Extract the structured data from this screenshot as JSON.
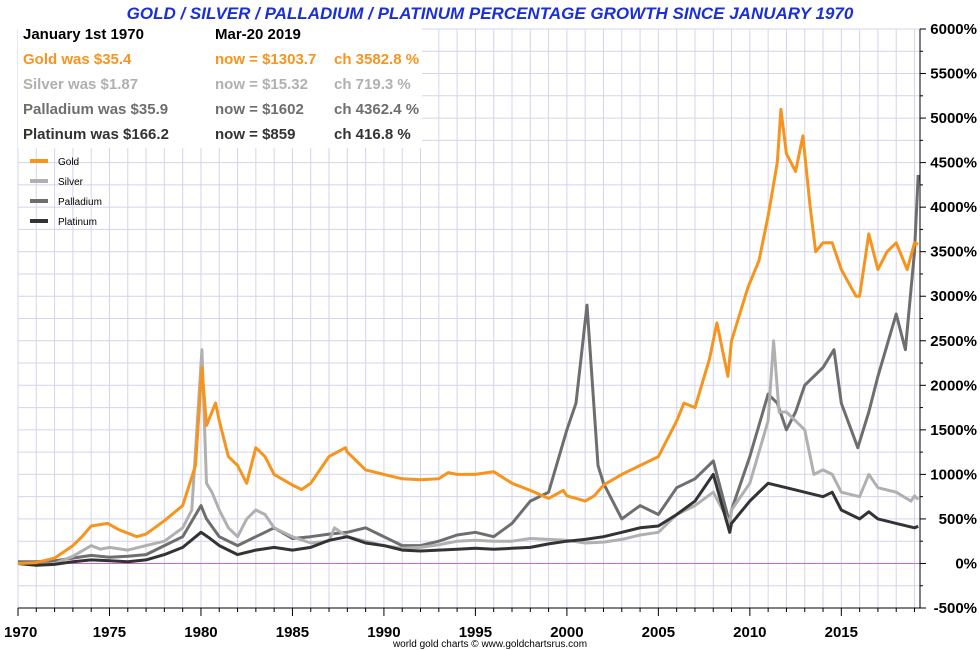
{
  "chart_data": {
    "type": "line",
    "title": "GOLD / SILVER / PALLADIUM / PLATINUM PERCENTAGE GROWTH SINCE JANUARY 1970",
    "xlabel": "",
    "ylabel": "",
    "xlim": [
      1970,
      2019.3
    ],
    "ylim": [
      -500,
      6000
    ],
    "x_ticks": [
      "1970",
      "1975",
      "1980",
      "1985",
      "1990",
      "1995",
      "2000",
      "2005",
      "2010",
      "2015"
    ],
    "y_ticks": [
      "6000%",
      "5500%",
      "5000%",
      "4500%",
      "4000%",
      "3500%",
      "3000%",
      "2500%",
      "2000%",
      "1500%",
      "1000%",
      "500%",
      "0%",
      "-500%"
    ],
    "grid": true,
    "legend_position": "top-left",
    "zero_line_color": "#cc66cc",
    "credit": "world gold charts © www.goldchartsrus.com",
    "info": {
      "start_label": "January 1st 1970",
      "end_label": "Mar-20  2019",
      "rows": [
        {
          "was": "Gold was $35.4",
          "now": "now = $1303.7",
          "ch": "ch 3582.8 %",
          "color": "#f7941d"
        },
        {
          "was": "Silver was $1.87",
          "now": "now = $15.32",
          "ch": "ch 719.3 %",
          "color": "#b0b0b0"
        },
        {
          "was": "Palladium was $35.9",
          "now": "now = $1602",
          "ch": "ch 4362.4 %",
          "color": "#6e6e6e"
        },
        {
          "was": "Platinum was $166.2",
          "now": "now = $859",
          "ch": "ch 416.8 %",
          "color": "#333333"
        }
      ]
    },
    "series": [
      {
        "name": "Gold",
        "color": "#f7941d",
        "points": [
          [
            1970,
            0
          ],
          [
            1971,
            10
          ],
          [
            1972,
            60
          ],
          [
            1973,
            200
          ],
          [
            1973.5,
            300
          ],
          [
            1974,
            420
          ],
          [
            1974.9,
            450
          ],
          [
            1975.5,
            380
          ],
          [
            1976.5,
            300
          ],
          [
            1977,
            330
          ],
          [
            1978,
            480
          ],
          [
            1979,
            650
          ],
          [
            1979.7,
            1100
          ],
          [
            1980.05,
            2200
          ],
          [
            1980.3,
            1550
          ],
          [
            1980.8,
            1800
          ],
          [
            1981,
            1600
          ],
          [
            1981.5,
            1200
          ],
          [
            1982,
            1100
          ],
          [
            1982.5,
            900
          ],
          [
            1983,
            1300
          ],
          [
            1983.5,
            1200
          ],
          [
            1984,
            1000
          ],
          [
            1985,
            880
          ],
          [
            1985.5,
            830
          ],
          [
            1986,
            900
          ],
          [
            1987,
            1200
          ],
          [
            1987.9,
            1300
          ],
          [
            1988,
            1250
          ],
          [
            1988.5,
            1150
          ],
          [
            1989,
            1050
          ],
          [
            1990,
            1000
          ],
          [
            1991,
            950
          ],
          [
            1992,
            940
          ],
          [
            1993,
            950
          ],
          [
            1993.5,
            1020
          ],
          [
            1994,
            1000
          ],
          [
            1995,
            1000
          ],
          [
            1996,
            1030
          ],
          [
            1997,
            900
          ],
          [
            1998,
            820
          ],
          [
            1999,
            730
          ],
          [
            1999.8,
            820
          ],
          [
            2000,
            760
          ],
          [
            2001,
            700
          ],
          [
            2001.5,
            760
          ],
          [
            2002,
            880
          ],
          [
            2003,
            1000
          ],
          [
            2004,
            1100
          ],
          [
            2005,
            1200
          ],
          [
            2006,
            1600
          ],
          [
            2006.4,
            1800
          ],
          [
            2007,
            1750
          ],
          [
            2007.8,
            2300
          ],
          [
            2008.2,
            2700
          ],
          [
            2008.8,
            2100
          ],
          [
            2009,
            2500
          ],
          [
            2009.9,
            3100
          ],
          [
            2010.5,
            3400
          ],
          [
            2011,
            3900
          ],
          [
            2011.5,
            4500
          ],
          [
            2011.7,
            5100
          ],
          [
            2012,
            4600
          ],
          [
            2012.5,
            4400
          ],
          [
            2012.9,
            4800
          ],
          [
            2013.3,
            4000
          ],
          [
            2013.6,
            3500
          ],
          [
            2014,
            3600
          ],
          [
            2014.5,
            3600
          ],
          [
            2015,
            3300
          ],
          [
            2015.8,
            3000
          ],
          [
            2016,
            3000
          ],
          [
            2016.5,
            3700
          ],
          [
            2017,
            3300
          ],
          [
            2017.5,
            3500
          ],
          [
            2018,
            3600
          ],
          [
            2018.6,
            3300
          ],
          [
            2019,
            3600
          ],
          [
            2019.2,
            3583
          ]
        ]
      },
      {
        "name": "Silver",
        "color": "#b0b0b0",
        "points": [
          [
            1970,
            0
          ],
          [
            1971,
            -20
          ],
          [
            1972,
            0
          ],
          [
            1973,
            80
          ],
          [
            1974,
            200
          ],
          [
            1974.5,
            160
          ],
          [
            1975,
            180
          ],
          [
            1976,
            150
          ],
          [
            1977,
            200
          ],
          [
            1978,
            250
          ],
          [
            1979,
            400
          ],
          [
            1979.5,
            600
          ],
          [
            1980.05,
            2400
          ],
          [
            1980.3,
            900
          ],
          [
            1980.6,
            800
          ],
          [
            1981,
            600
          ],
          [
            1981.5,
            400
          ],
          [
            1982,
            300
          ],
          [
            1982.5,
            500
          ],
          [
            1983,
            600
          ],
          [
            1983.5,
            550
          ],
          [
            1984,
            400
          ],
          [
            1985,
            300
          ],
          [
            1986,
            230
          ],
          [
            1987,
            250
          ],
          [
            1987.3,
            400
          ],
          [
            1988,
            300
          ],
          [
            1989,
            250
          ],
          [
            1990,
            200
          ],
          [
            1991,
            170
          ],
          [
            1992,
            180
          ],
          [
            1993,
            210
          ],
          [
            1994,
            250
          ],
          [
            1995,
            260
          ],
          [
            1996,
            250
          ],
          [
            1997,
            250
          ],
          [
            1998,
            280
          ],
          [
            1999,
            270
          ],
          [
            2000,
            260
          ],
          [
            2001,
            230
          ],
          [
            2002,
            240
          ],
          [
            2003,
            270
          ],
          [
            2004,
            320
          ],
          [
            2005,
            350
          ],
          [
            2006,
            550
          ],
          [
            2007,
            650
          ],
          [
            2008,
            800
          ],
          [
            2008.9,
            450
          ],
          [
            2009,
            600
          ],
          [
            2010,
            900
          ],
          [
            2011,
            1600
          ],
          [
            2011.3,
            2500
          ],
          [
            2011.6,
            1700
          ],
          [
            2012,
            1700
          ],
          [
            2012.5,
            1600
          ],
          [
            2013,
            1500
          ],
          [
            2013.5,
            1000
          ],
          [
            2014,
            1050
          ],
          [
            2014.5,
            1000
          ],
          [
            2015,
            800
          ],
          [
            2016,
            750
          ],
          [
            2016.5,
            1000
          ],
          [
            2017,
            850
          ],
          [
            2018,
            800
          ],
          [
            2018.8,
            700
          ],
          [
            2019,
            760
          ],
          [
            2019.2,
            719
          ]
        ]
      },
      {
        "name": "Palladium",
        "color": "#6e6e6e",
        "points": [
          [
            1970,
            20
          ],
          [
            1971,
            20
          ],
          [
            1972,
            30
          ],
          [
            1973,
            60
          ],
          [
            1974,
            90
          ],
          [
            1975,
            70
          ],
          [
            1976,
            80
          ],
          [
            1977,
            100
          ],
          [
            1978,
            200
          ],
          [
            1979,
            300
          ],
          [
            1980,
            650
          ],
          [
            1980.3,
            500
          ],
          [
            1981,
            300
          ],
          [
            1982,
            200
          ],
          [
            1983,
            300
          ],
          [
            1983.5,
            350
          ],
          [
            1984,
            400
          ],
          [
            1985,
            280
          ],
          [
            1986,
            300
          ],
          [
            1987,
            330
          ],
          [
            1988,
            350
          ],
          [
            1989,
            400
          ],
          [
            1990,
            300
          ],
          [
            1991,
            200
          ],
          [
            1992,
            200
          ],
          [
            1993,
            250
          ],
          [
            1994,
            320
          ],
          [
            1995,
            350
          ],
          [
            1996,
            300
          ],
          [
            1997,
            450
          ],
          [
            1998,
            700
          ],
          [
            1999,
            800
          ],
          [
            2000,
            1500
          ],
          [
            2000.5,
            1800
          ],
          [
            2001.1,
            2900
          ],
          [
            2001.7,
            1100
          ],
          [
            2002,
            900
          ],
          [
            2003,
            500
          ],
          [
            2004,
            650
          ],
          [
            2005,
            550
          ],
          [
            2006,
            850
          ],
          [
            2007,
            950
          ],
          [
            2008,
            1150
          ],
          [
            2008.9,
            450
          ],
          [
            2009,
            600
          ],
          [
            2010,
            1200
          ],
          [
            2011,
            1900
          ],
          [
            2011.5,
            1800
          ],
          [
            2012,
            1500
          ],
          [
            2012.5,
            1700
          ],
          [
            2013,
            2000
          ],
          [
            2014,
            2200
          ],
          [
            2014.6,
            2400
          ],
          [
            2015,
            1800
          ],
          [
            2015.9,
            1300
          ],
          [
            2016.5,
            1700
          ],
          [
            2017,
            2100
          ],
          [
            2018,
            2800
          ],
          [
            2018.5,
            2400
          ],
          [
            2019,
            3500
          ],
          [
            2019.2,
            4362
          ]
        ]
      },
      {
        "name": "Platinum",
        "color": "#333333",
        "points": [
          [
            1970,
            0
          ],
          [
            1971,
            -20
          ],
          [
            1972,
            -10
          ],
          [
            1973,
            20
          ],
          [
            1974,
            40
          ],
          [
            1975,
            30
          ],
          [
            1976,
            20
          ],
          [
            1977,
            40
          ],
          [
            1978,
            100
          ],
          [
            1979,
            180
          ],
          [
            1980,
            350
          ],
          [
            1980.5,
            280
          ],
          [
            1981,
            200
          ],
          [
            1982,
            100
          ],
          [
            1983,
            150
          ],
          [
            1984,
            180
          ],
          [
            1985,
            150
          ],
          [
            1986,
            180
          ],
          [
            1987,
            260
          ],
          [
            1988,
            300
          ],
          [
            1989,
            230
          ],
          [
            1990,
            200
          ],
          [
            1991,
            150
          ],
          [
            1992,
            140
          ],
          [
            1993,
            150
          ],
          [
            1994,
            160
          ],
          [
            1995,
            170
          ],
          [
            1996,
            160
          ],
          [
            1997,
            170
          ],
          [
            1998,
            180
          ],
          [
            1999,
            220
          ],
          [
            2000,
            250
          ],
          [
            2001,
            270
          ],
          [
            2002,
            300
          ],
          [
            2003,
            350
          ],
          [
            2004,
            400
          ],
          [
            2005,
            420
          ],
          [
            2006,
            550
          ],
          [
            2007,
            700
          ],
          [
            2008,
            1000
          ],
          [
            2008.9,
            350
          ],
          [
            2009,
            450
          ],
          [
            2010,
            700
          ],
          [
            2011,
            900
          ],
          [
            2012,
            850
          ],
          [
            2013,
            800
          ],
          [
            2014,
            750
          ],
          [
            2014.5,
            800
          ],
          [
            2015,
            600
          ],
          [
            2016,
            500
          ],
          [
            2016.5,
            580
          ],
          [
            2017,
            500
          ],
          [
            2018,
            450
          ],
          [
            2019,
            400
          ],
          [
            2019.2,
            417
          ]
        ]
      }
    ]
  }
}
